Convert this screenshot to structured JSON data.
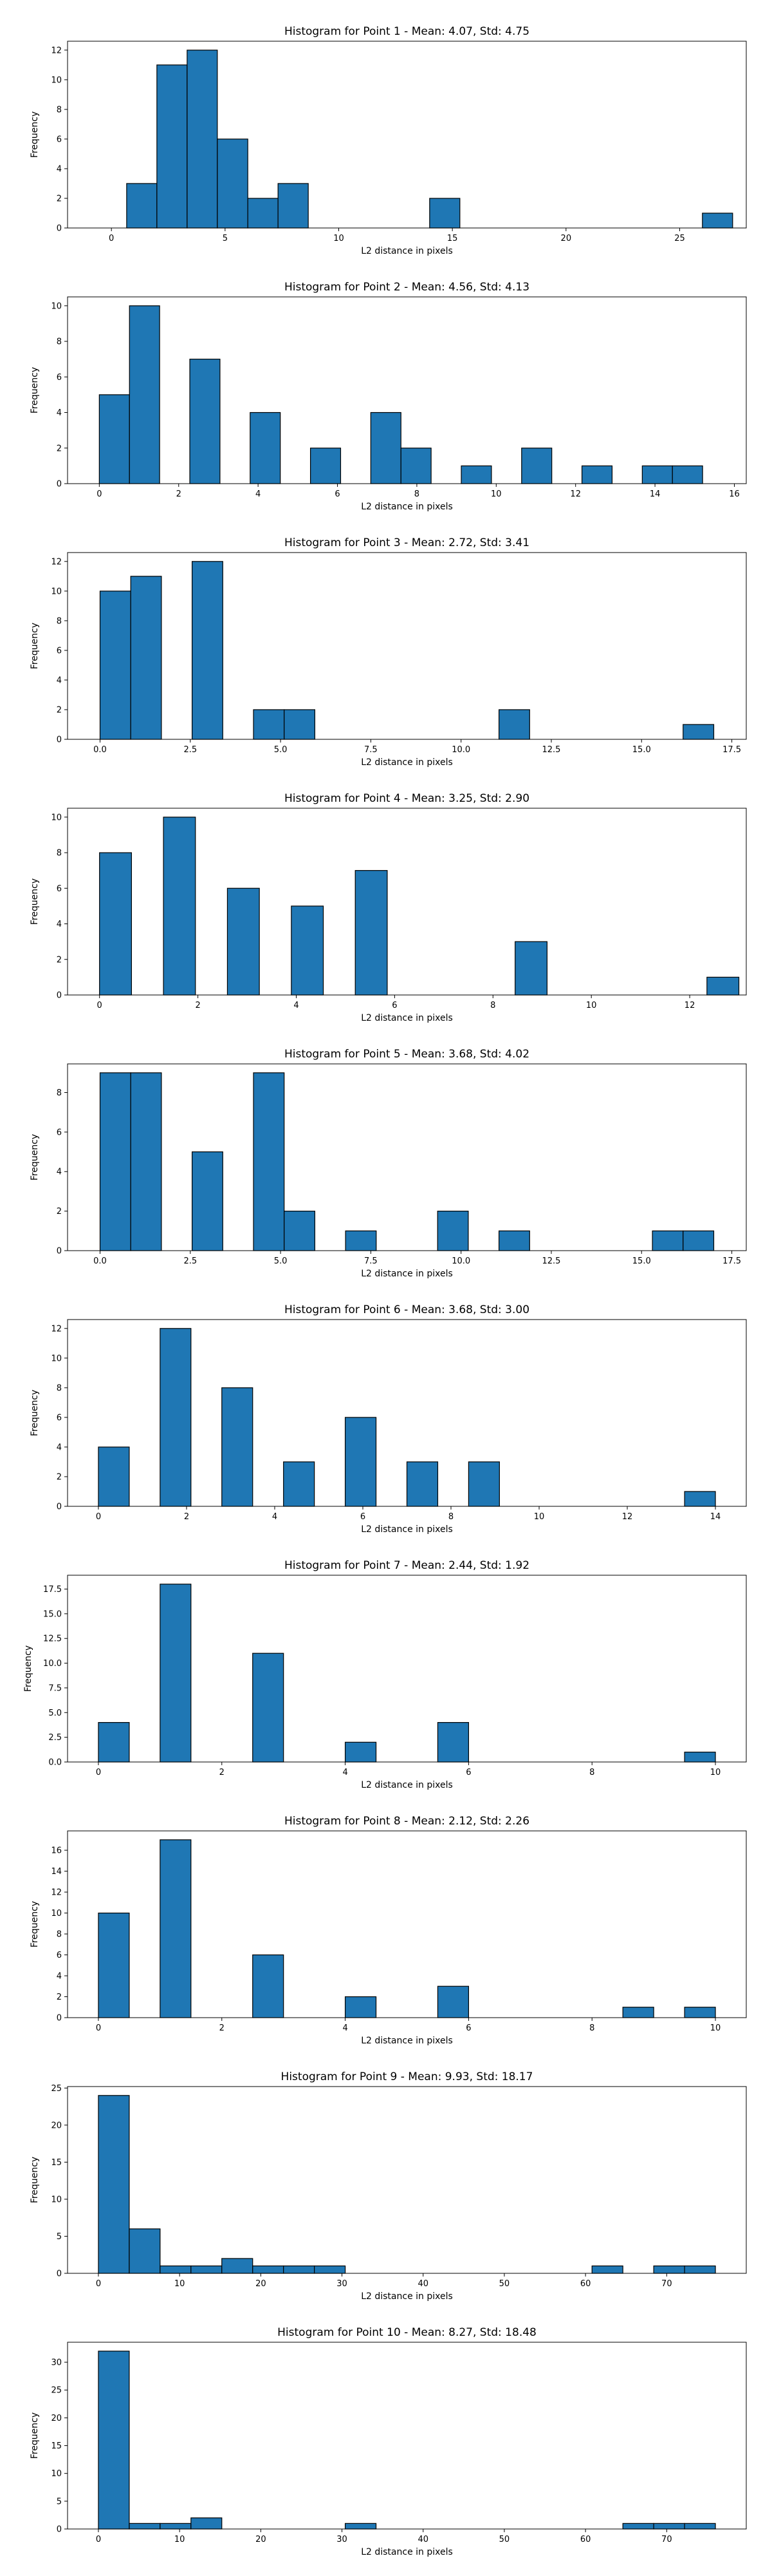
{
  "style": {
    "bar_color": "#1f77b4",
    "edge_color": "#000000"
  },
  "chart_data": [
    {
      "type": "bar",
      "title": "Histogram for Point 1 - Mean: 4.07, Std: 4.75",
      "xlabel": "L2 distance in pixels",
      "ylabel": "Frequency",
      "xlim": [
        -1.93,
        27.93
      ],
      "ylim": [
        0,
        12.6
      ],
      "xticks": [
        0,
        5,
        10,
        15,
        20,
        25
      ],
      "yticks": [
        0,
        2,
        4,
        6,
        8,
        10,
        12
      ],
      "bin_edges": [
        -0.66,
        0.67,
        2.0,
        3.33,
        4.66,
        6.0,
        7.33,
        8.66,
        10.0,
        11.33,
        12.66,
        14.0,
        15.33,
        16.66,
        18.0,
        19.33,
        20.66,
        22.0,
        23.33,
        24.66,
        26.0,
        27.33
      ],
      "counts": [
        0,
        3,
        11,
        12,
        6,
        2,
        3,
        0,
        0,
        0,
        0,
        2,
        0,
        0,
        0,
        0,
        0,
        0,
        0,
        0,
        1
      ]
    },
    {
      "type": "bar",
      "title": "Histogram for Point 2 - Mean: 4.56, Std: 4.13",
      "xlabel": "L2 distance in pixels",
      "ylabel": "Frequency",
      "xlim": [
        -0.8,
        16.3
      ],
      "ylim": [
        0,
        10.5
      ],
      "xticks": [
        0,
        2,
        4,
        6,
        8,
        10,
        12,
        14,
        16
      ],
      "yticks": [
        0,
        2,
        4,
        6,
        8,
        10
      ],
      "bin_edges": [
        0.0,
        0.76,
        1.52,
        2.28,
        3.04,
        3.8,
        4.56,
        5.32,
        6.08,
        6.84,
        7.6,
        8.36,
        9.12,
        9.88,
        10.64,
        11.4,
        12.16,
        12.92,
        13.68,
        14.44,
        15.2,
        15.96
      ],
      "counts": [
        5,
        10,
        0,
        7,
        0,
        4,
        0,
        2,
        0,
        4,
        2,
        0,
        1,
        0,
        2,
        0,
        1,
        0,
        1,
        1,
        0
      ]
    },
    {
      "type": "bar",
      "title": "Histogram for Point 3 - Mean: 2.72, Std: 3.41",
      "xlabel": "L2 distance in pixels",
      "ylabel": "Frequency",
      "xlim": [
        -0.9,
        17.9
      ],
      "ylim": [
        0,
        12.6
      ],
      "xticks": [
        0.0,
        2.5,
        5.0,
        7.5,
        10.0,
        12.5,
        15.0,
        17.5
      ],
      "xticklabels": [
        "0.0",
        "2.5",
        "5.0",
        "7.5",
        "10.0",
        "12.5",
        "15.0",
        "17.5"
      ],
      "yticks": [
        0,
        2,
        4,
        6,
        8,
        10,
        12
      ],
      "bin_edges": [
        0.0,
        0.85,
        1.7,
        2.55,
        3.4,
        4.25,
        5.1,
        5.95,
        6.8,
        7.65,
        8.5,
        9.35,
        10.2,
        11.05,
        11.9,
        12.75,
        13.6,
        14.45,
        15.3,
        16.15,
        17.0
      ],
      "counts": [
        10,
        11,
        0,
        12,
        0,
        2,
        2,
        0,
        0,
        0,
        0,
        0,
        0,
        2,
        0,
        0,
        0,
        0,
        0,
        1
      ]
    },
    {
      "type": "bar",
      "title": "Histogram for Point 4 - Mean: 3.25, Std: 2.90",
      "xlabel": "L2 distance in pixels",
      "ylabel": "Frequency",
      "xlim": [
        -0.65,
        13.15
      ],
      "ylim": [
        0,
        10.5
      ],
      "xticks": [
        0,
        2,
        4,
        6,
        8,
        10,
        12
      ],
      "yticks": [
        0,
        2,
        4,
        6,
        8,
        10
      ],
      "bin_edges": [
        0.0,
        0.65,
        1.3,
        1.95,
        2.6,
        3.25,
        3.9,
        4.55,
        5.2,
        5.85,
        6.5,
        7.15,
        7.8,
        8.45,
        9.1,
        9.75,
        10.4,
        11.05,
        11.7,
        12.35,
        13.0
      ],
      "counts": [
        8,
        0,
        10,
        0,
        6,
        0,
        5,
        0,
        7,
        0,
        0,
        0,
        0,
        3,
        0,
        0,
        0,
        0,
        0,
        1
      ]
    },
    {
      "type": "bar",
      "title": "Histogram for Point 5 - Mean: 3.68, Std: 4.02",
      "xlabel": "L2 distance in pixels",
      "ylabel": "Frequency",
      "xlim": [
        -0.9,
        17.9
      ],
      "ylim": [
        0,
        9.45
      ],
      "xticks": [
        0.0,
        2.5,
        5.0,
        7.5,
        10.0,
        12.5,
        15.0,
        17.5
      ],
      "xticklabels": [
        "0.0",
        "2.5",
        "5.0",
        "7.5",
        "10.0",
        "12.5",
        "15.0",
        "17.5"
      ],
      "yticks": [
        0,
        2,
        4,
        6,
        8
      ],
      "bin_edges": [
        0.0,
        0.85,
        1.7,
        2.55,
        3.4,
        4.25,
        5.1,
        5.95,
        6.8,
        7.65,
        8.5,
        9.35,
        10.2,
        11.05,
        11.9,
        12.75,
        13.6,
        14.45,
        15.3,
        16.15,
        17.0
      ],
      "counts": [
        9,
        9,
        0,
        5,
        0,
        9,
        2,
        0,
        1,
        0,
        0,
        2,
        0,
        1,
        0,
        0,
        0,
        0,
        1,
        1
      ]
    },
    {
      "type": "bar",
      "title": "Histogram for Point 6 - Mean: 3.68, Std: 3.00",
      "xlabel": "L2 distance in pixels",
      "ylabel": "Frequency",
      "xlim": [
        -0.7,
        14.7
      ],
      "ylim": [
        0,
        12.6
      ],
      "xticks": [
        0,
        2,
        4,
        6,
        8,
        10,
        12,
        14
      ],
      "yticks": [
        0,
        2,
        4,
        6,
        8,
        10,
        12
      ],
      "bin_edges": [
        0.0,
        0.7,
        1.4,
        2.1,
        2.8,
        3.5,
        4.2,
        4.9,
        5.6,
        6.3,
        7.0,
        7.7,
        8.4,
        9.1,
        9.8,
        10.5,
        11.2,
        11.9,
        12.6,
        13.3,
        14.0
      ],
      "counts": [
        4,
        0,
        12,
        0,
        8,
        0,
        3,
        0,
        6,
        0,
        3,
        0,
        3,
        0,
        0,
        0,
        0,
        0,
        0,
        1
      ]
    },
    {
      "type": "bar",
      "title": "Histogram for Point 7 - Mean: 2.44, Std: 1.92",
      "xlabel": "L2 distance in pixels",
      "ylabel": "Frequency",
      "xlim": [
        -0.5,
        10.5
      ],
      "ylim": [
        0,
        18.9
      ],
      "xticks": [
        0,
        2,
        4,
        6,
        8,
        10
      ],
      "yticks": [
        0.0,
        2.5,
        5.0,
        7.5,
        10.0,
        12.5,
        15.0,
        17.5
      ],
      "yticklabels": [
        "0.0",
        "2.5",
        "5.0",
        "7.5",
        "10.0",
        "12.5",
        "15.0",
        "17.5"
      ],
      "bin_edges": [
        0.0,
        0.5,
        1.0,
        1.5,
        2.0,
        2.5,
        3.0,
        3.5,
        4.0,
        4.5,
        5.0,
        5.5,
        6.0,
        6.5,
        7.0,
        7.5,
        8.0,
        8.5,
        9.0,
        9.5,
        10.0
      ],
      "counts": [
        4,
        0,
        18,
        0,
        0,
        11,
        0,
        0,
        2,
        0,
        0,
        4,
        0,
        0,
        0,
        0,
        0,
        0,
        0,
        1
      ]
    },
    {
      "type": "bar",
      "title": "Histogram for Point 8 - Mean: 2.12, Std: 2.26",
      "xlabel": "L2 distance in pixels",
      "ylabel": "Frequency",
      "xlim": [
        -0.5,
        10.5
      ],
      "ylim": [
        0,
        17.85
      ],
      "xticks": [
        0,
        2,
        4,
        6,
        8,
        10
      ],
      "yticks": [
        0,
        2,
        4,
        6,
        8,
        10,
        12,
        14,
        16
      ],
      "bin_edges": [
        0.0,
        0.5,
        1.0,
        1.5,
        2.0,
        2.5,
        3.0,
        3.5,
        4.0,
        4.5,
        5.0,
        5.5,
        6.0,
        6.5,
        7.0,
        7.5,
        8.0,
        8.5,
        9.0,
        9.5,
        10.0
      ],
      "counts": [
        10,
        0,
        17,
        0,
        0,
        6,
        0,
        0,
        2,
        0,
        0,
        3,
        0,
        0,
        0,
        0,
        0,
        1,
        0,
        1
      ]
    },
    {
      "type": "bar",
      "title": "Histogram for Point 9 - Mean: 9.93, Std: 18.17",
      "xlabel": "L2 distance in pixels",
      "ylabel": "Frequency",
      "xlim": [
        -3.8,
        79.8
      ],
      "ylim": [
        0,
        25.2
      ],
      "xticks": [
        0,
        10,
        20,
        30,
        40,
        50,
        60,
        70
      ],
      "yticks": [
        0,
        5,
        10,
        15,
        20,
        25
      ],
      "bin_edges": [
        0.0,
        3.8,
        7.6,
        11.4,
        15.2,
        19.0,
        22.8,
        26.6,
        30.4,
        34.2,
        38.0,
        41.8,
        45.6,
        49.4,
        53.2,
        57.0,
        60.8,
        64.6,
        68.4,
        72.2,
        76.0
      ],
      "counts": [
        24,
        6,
        1,
        1,
        2,
        1,
        1,
        1,
        0,
        0,
        0,
        0,
        0,
        0,
        0,
        0,
        1,
        0,
        1,
        1
      ]
    },
    {
      "type": "bar",
      "title": "Histogram for Point 10 - Mean: 8.27, Std: 18.48",
      "xlabel": "L2 distance in pixels",
      "ylabel": "Frequency",
      "xlim": [
        -3.8,
        79.8
      ],
      "ylim": [
        0,
        33.6
      ],
      "xticks": [
        0,
        10,
        20,
        30,
        40,
        50,
        60,
        70
      ],
      "yticks": [
        0,
        5,
        10,
        15,
        20,
        25,
        30
      ],
      "bin_edges": [
        0.0,
        3.8,
        7.6,
        11.4,
        15.2,
        19.0,
        22.8,
        26.6,
        30.4,
        34.2,
        38.0,
        41.8,
        45.6,
        49.4,
        53.2,
        57.0,
        60.8,
        64.6,
        68.4,
        72.2,
        76.0
      ],
      "counts": [
        32,
        1,
        1,
        2,
        0,
        0,
        0,
        0,
        1,
        0,
        0,
        0,
        0,
        0,
        0,
        0,
        0,
        1,
        1,
        1
      ]
    }
  ]
}
